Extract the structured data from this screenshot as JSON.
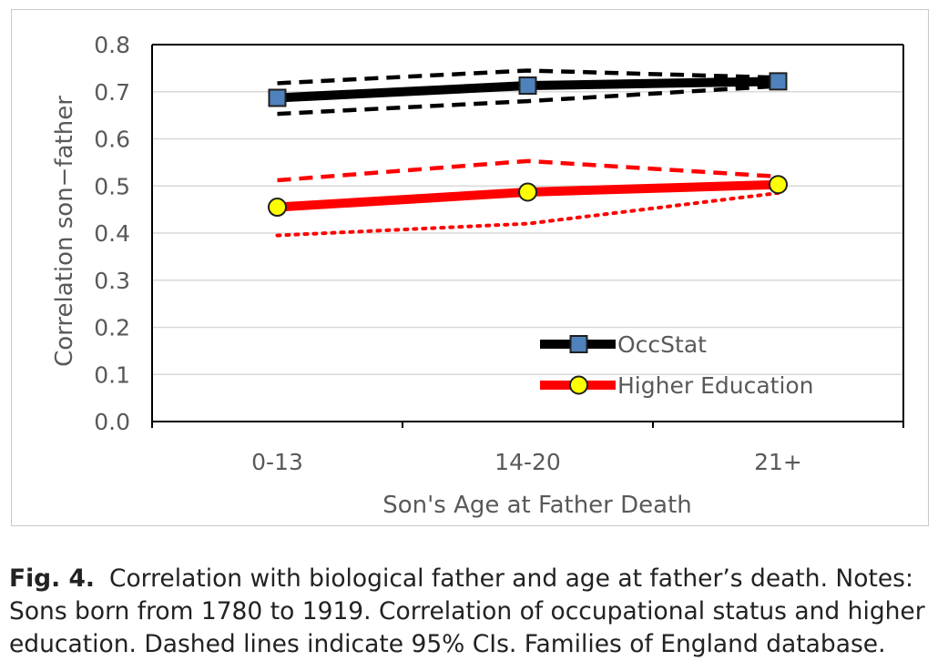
{
  "chart_data": {
    "type": "line",
    "title": "",
    "xlabel": "Son's Age at Father Death",
    "ylabel": "Correlation son−father",
    "categories": [
      "0-13",
      "14-20",
      "21+"
    ],
    "ylim": [
      0,
      0.8
    ],
    "yticks": [
      "0.0",
      "0.1",
      "0.2",
      "0.3",
      "0.4",
      "0.5",
      "0.6",
      "0.7",
      "0.8"
    ],
    "grid": true,
    "legend_position": "bottom-right",
    "series": [
      {
        "name": "OccStat",
        "values": [
          0.687,
          0.713,
          0.722
        ],
        "ci_upper": [
          0.718,
          0.745,
          0.73
        ],
        "ci_lower": [
          0.653,
          0.68,
          0.712
        ],
        "ci_style": [
          "dashed",
          "dashed"
        ],
        "color": "#000000",
        "marker": "square",
        "marker_color": "#4f81bd"
      },
      {
        "name": "Higher Education",
        "values": [
          0.455,
          0.487,
          0.503
        ],
        "ci_upper": [
          0.512,
          0.553,
          0.52
        ],
        "ci_lower": [
          0.395,
          0.42,
          0.485
        ],
        "ci_style": [
          "dashed",
          "dotted"
        ],
        "color": "#ff0000",
        "marker": "circle",
        "marker_color": "#ffff00"
      }
    ]
  },
  "caption": {
    "label": "Fig. 4.",
    "text": "Correlation with biological father and age at father’s death. Notes: Sons born from 1780 to 1919. Correlation of occupational status and higher education. Dashed lines indicate 95% CIs. Families of England database."
  }
}
